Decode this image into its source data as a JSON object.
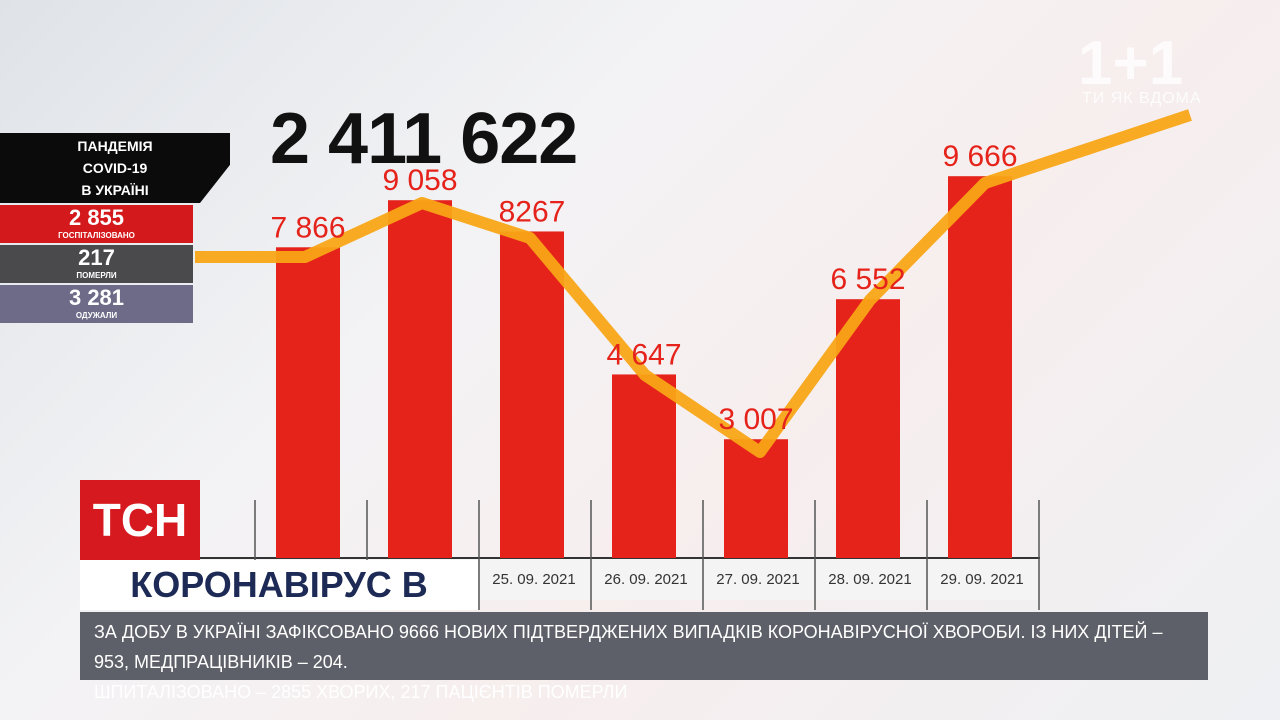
{
  "chart_data": {
    "type": "bar",
    "categories": [
      null,
      null,
      "25. 09. 2021",
      "26. 09. 2021",
      "27. 09. 2021",
      "28. 09. 2021",
      "29. 09. 2021"
    ],
    "values": [
      7866,
      9058,
      8267,
      4647,
      3007,
      6552,
      9666
    ],
    "value_labels": [
      "7 866",
      "9 058",
      "8267",
      "4 647",
      "3 007",
      "6 552",
      "9 666"
    ],
    "color": "#e5231b",
    "ylim": [
      0,
      12000
    ]
  },
  "total": "2 411 622",
  "panel": {
    "title": [
      "ПАНДЕМІЯ",
      "COVID-19",
      "В УКРАЇНІ"
    ],
    "stats": [
      {
        "value": "2 855",
        "label": "ГОСПІТАЛІЗОВАНО"
      },
      {
        "value": "217",
        "label": "ПОМЕРЛИ"
      },
      {
        "value": "3 281",
        "label": "ОДУЖАЛИ"
      }
    ]
  },
  "channel": {
    "logo": "1+1",
    "slogan": "ТИ ЯК ВДОМА"
  },
  "show": "ТСН",
  "headline": "КОРОНАВІРУС В УКРАЇНІ",
  "ticker": [
    "ЗА ДОБУ В УКРАЇНІ ЗАФІКСОВАНО 9666 НОВИХ ПІДТВЕРДЖЕНИХ ВИПАДКІВ КОРОНАВІРУСНОЇ ХВОРОБИ. ІЗ НИХ ДІТЕЙ – 953, МЕДПРАЦІВНИКІВ – 204.",
    "ШПИТАЛІЗОВАНО – 2855 ХВОРИХ, 217 ПАЦІЄНТІВ ПОМЕРЛИ"
  ]
}
